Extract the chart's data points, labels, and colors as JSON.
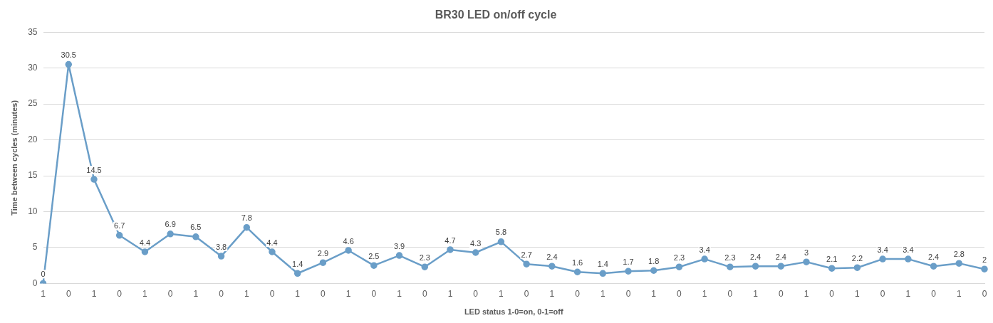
{
  "chart_data": {
    "type": "line",
    "title": "BR30 LED on/off cycle",
    "xlabel": "LED status 1-0=on, 0-1=off",
    "ylabel": "Time between cycles (minutes)",
    "categories": [
      "1",
      "0",
      "1",
      "0",
      "1",
      "0",
      "1",
      "0",
      "1",
      "0",
      "1",
      "0",
      "1",
      "0",
      "1",
      "0",
      "1",
      "0",
      "1",
      "0",
      "1",
      "0",
      "1",
      "0",
      "1",
      "0",
      "1",
      "0",
      "1",
      "0",
      "1",
      "0",
      "1",
      "0",
      "1",
      "0",
      "1",
      "0"
    ],
    "series": [
      {
        "color": "#6a9ec8",
        "values": [
          0,
          30.5,
          14.5,
          6.7,
          4.4,
          6.9,
          6.5,
          3.8,
          7.8,
          4.4,
          1.4,
          2.9,
          4.6,
          2.5,
          3.9,
          2.3,
          4.7,
          4.3,
          5.8,
          2.7,
          2.4,
          1.6,
          1.4,
          1.7,
          1.8,
          2.3,
          3.4,
          2.3,
          2.4,
          2.4,
          3,
          2.1,
          2.2,
          3.4,
          3.4,
          2.4,
          2.8,
          2
        ]
      }
    ],
    "ylim": [
      0,
      35
    ],
    "yticks": [
      0,
      5,
      10,
      15,
      20,
      25,
      30,
      35
    ],
    "grid": "y",
    "legend": false,
    "marker": "circle",
    "line_style": "solid",
    "data_labels": true
  }
}
